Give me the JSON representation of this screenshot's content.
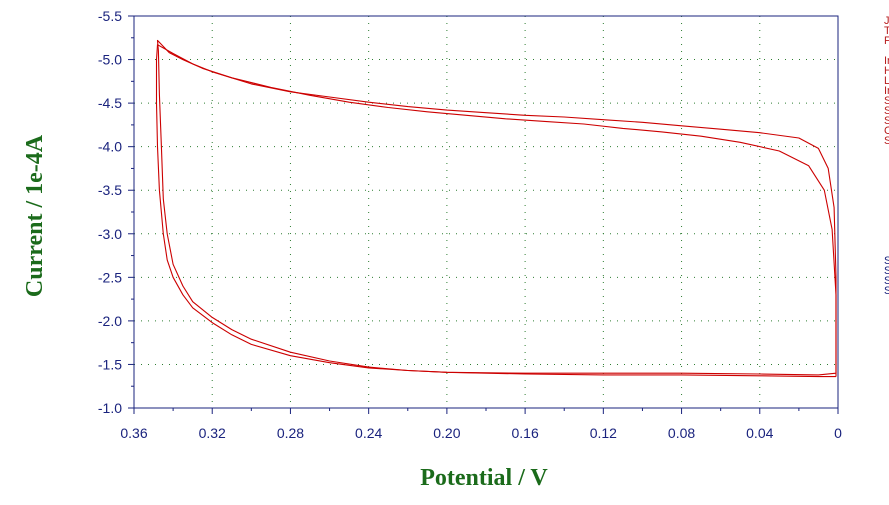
{
  "chart_data": {
    "type": "line",
    "xlabel": "Potential / V",
    "ylabel": "Current / 1e-4A",
    "xlim": [
      0.36,
      0
    ],
    "ylim": [
      -5.5,
      -1.0
    ],
    "x_reversed": true,
    "x_ticks": [
      "0.36",
      "0.32",
      "0.28",
      "0.24",
      "0.20",
      "0.16",
      "0.12",
      "0.08",
      "0.04",
      "0"
    ],
    "x_tick_values": [
      0.36,
      0.32,
      0.28,
      0.24,
      0.2,
      0.16,
      0.12,
      0.08,
      0.04,
      0
    ],
    "y_ticks": [
      "-1.0",
      "-1.5",
      "-2.0",
      "-2.5",
      "-3.0",
      "-3.5",
      "-4.0",
      "-4.5",
      "-5.0",
      "-5.5"
    ],
    "y_tick_values": [
      -1.0,
      -1.5,
      -2.0,
      -2.5,
      -3.0,
      -3.5,
      -4.0,
      -4.5,
      -5.0,
      -5.5
    ],
    "grid": true,
    "line_color": "#cc0000",
    "series": [
      {
        "values_xy": [
          [
            0.001,
            -1.4
          ],
          [
            0.001,
            -2.5
          ],
          [
            0.002,
            -3.3
          ],
          [
            0.005,
            -3.75
          ],
          [
            0.01,
            -3.98
          ],
          [
            0.02,
            -4.1
          ],
          [
            0.04,
            -4.16
          ],
          [
            0.06,
            -4.2
          ],
          [
            0.08,
            -4.24
          ],
          [
            0.1,
            -4.28
          ],
          [
            0.12,
            -4.31
          ],
          [
            0.14,
            -4.34
          ],
          [
            0.16,
            -4.36
          ],
          [
            0.18,
            -4.39
          ],
          [
            0.2,
            -4.42
          ],
          [
            0.22,
            -4.46
          ],
          [
            0.24,
            -4.51
          ],
          [
            0.26,
            -4.57
          ],
          [
            0.28,
            -4.63
          ],
          [
            0.3,
            -4.72
          ],
          [
            0.32,
            -4.86
          ],
          [
            0.33,
            -4.95
          ],
          [
            0.34,
            -5.07
          ],
          [
            0.348,
            -5.17
          ],
          [
            0.3485,
            -5.0
          ],
          [
            0.3485,
            -4.5
          ],
          [
            0.348,
            -4.0
          ],
          [
            0.347,
            -3.5
          ],
          [
            0.345,
            -3.0
          ],
          [
            0.343,
            -2.7
          ],
          [
            0.34,
            -2.5
          ],
          [
            0.335,
            -2.3
          ],
          [
            0.33,
            -2.15
          ],
          [
            0.32,
            -1.98
          ],
          [
            0.31,
            -1.84
          ],
          [
            0.3,
            -1.73
          ],
          [
            0.28,
            -1.6
          ],
          [
            0.26,
            -1.52
          ],
          [
            0.24,
            -1.46
          ],
          [
            0.22,
            -1.43
          ],
          [
            0.2,
            -1.41
          ],
          [
            0.16,
            -1.4
          ],
          [
            0.12,
            -1.4
          ],
          [
            0.08,
            -1.4
          ],
          [
            0.04,
            -1.39
          ],
          [
            0.01,
            -1.38
          ],
          [
            0.001,
            -1.4
          ]
        ]
      },
      {
        "values_xy": [
          [
            0.001,
            -1.36
          ],
          [
            0.001,
            -2.3
          ],
          [
            0.003,
            -3.05
          ],
          [
            0.007,
            -3.5
          ],
          [
            0.015,
            -3.78
          ],
          [
            0.03,
            -3.95
          ],
          [
            0.05,
            -4.05
          ],
          [
            0.07,
            -4.12
          ],
          [
            0.09,
            -4.17
          ],
          [
            0.11,
            -4.21
          ],
          [
            0.13,
            -4.26
          ],
          [
            0.15,
            -4.29
          ],
          [
            0.17,
            -4.32
          ],
          [
            0.19,
            -4.36
          ],
          [
            0.21,
            -4.4
          ],
          [
            0.23,
            -4.45
          ],
          [
            0.25,
            -4.51
          ],
          [
            0.27,
            -4.59
          ],
          [
            0.29,
            -4.68
          ],
          [
            0.31,
            -4.79
          ],
          [
            0.325,
            -4.9
          ],
          [
            0.335,
            -5.0
          ],
          [
            0.342,
            -5.08
          ],
          [
            0.348,
            -5.22
          ],
          [
            0.3475,
            -5.1
          ],
          [
            0.347,
            -4.6
          ],
          [
            0.346,
            -4.0
          ],
          [
            0.345,
            -3.4
          ],
          [
            0.343,
            -3.0
          ],
          [
            0.34,
            -2.65
          ],
          [
            0.335,
            -2.4
          ],
          [
            0.33,
            -2.22
          ],
          [
            0.32,
            -2.04
          ],
          [
            0.31,
            -1.9
          ],
          [
            0.3,
            -1.79
          ],
          [
            0.28,
            -1.64
          ],
          [
            0.26,
            -1.54
          ],
          [
            0.24,
            -1.47
          ],
          [
            0.22,
            -1.43
          ],
          [
            0.2,
            -1.41
          ],
          [
            0.16,
            -1.39
          ],
          [
            0.12,
            -1.38
          ],
          [
            0.08,
            -1.38
          ],
          [
            0.04,
            -1.37
          ],
          [
            0.01,
            -1.36
          ],
          [
            0.001,
            -1.36
          ]
        ]
      }
    ]
  },
  "side_panel": {
    "red_letters": [
      "J",
      "T",
      "F",
      "",
      "Ir",
      "H",
      "L",
      "Ir",
      "S",
      "S",
      "S",
      "C",
      "S"
    ],
    "blue_letters": [
      "S",
      "S",
      "S",
      "S"
    ],
    "red_color": "#b71c1c",
    "blue_color": "#1a237e"
  }
}
